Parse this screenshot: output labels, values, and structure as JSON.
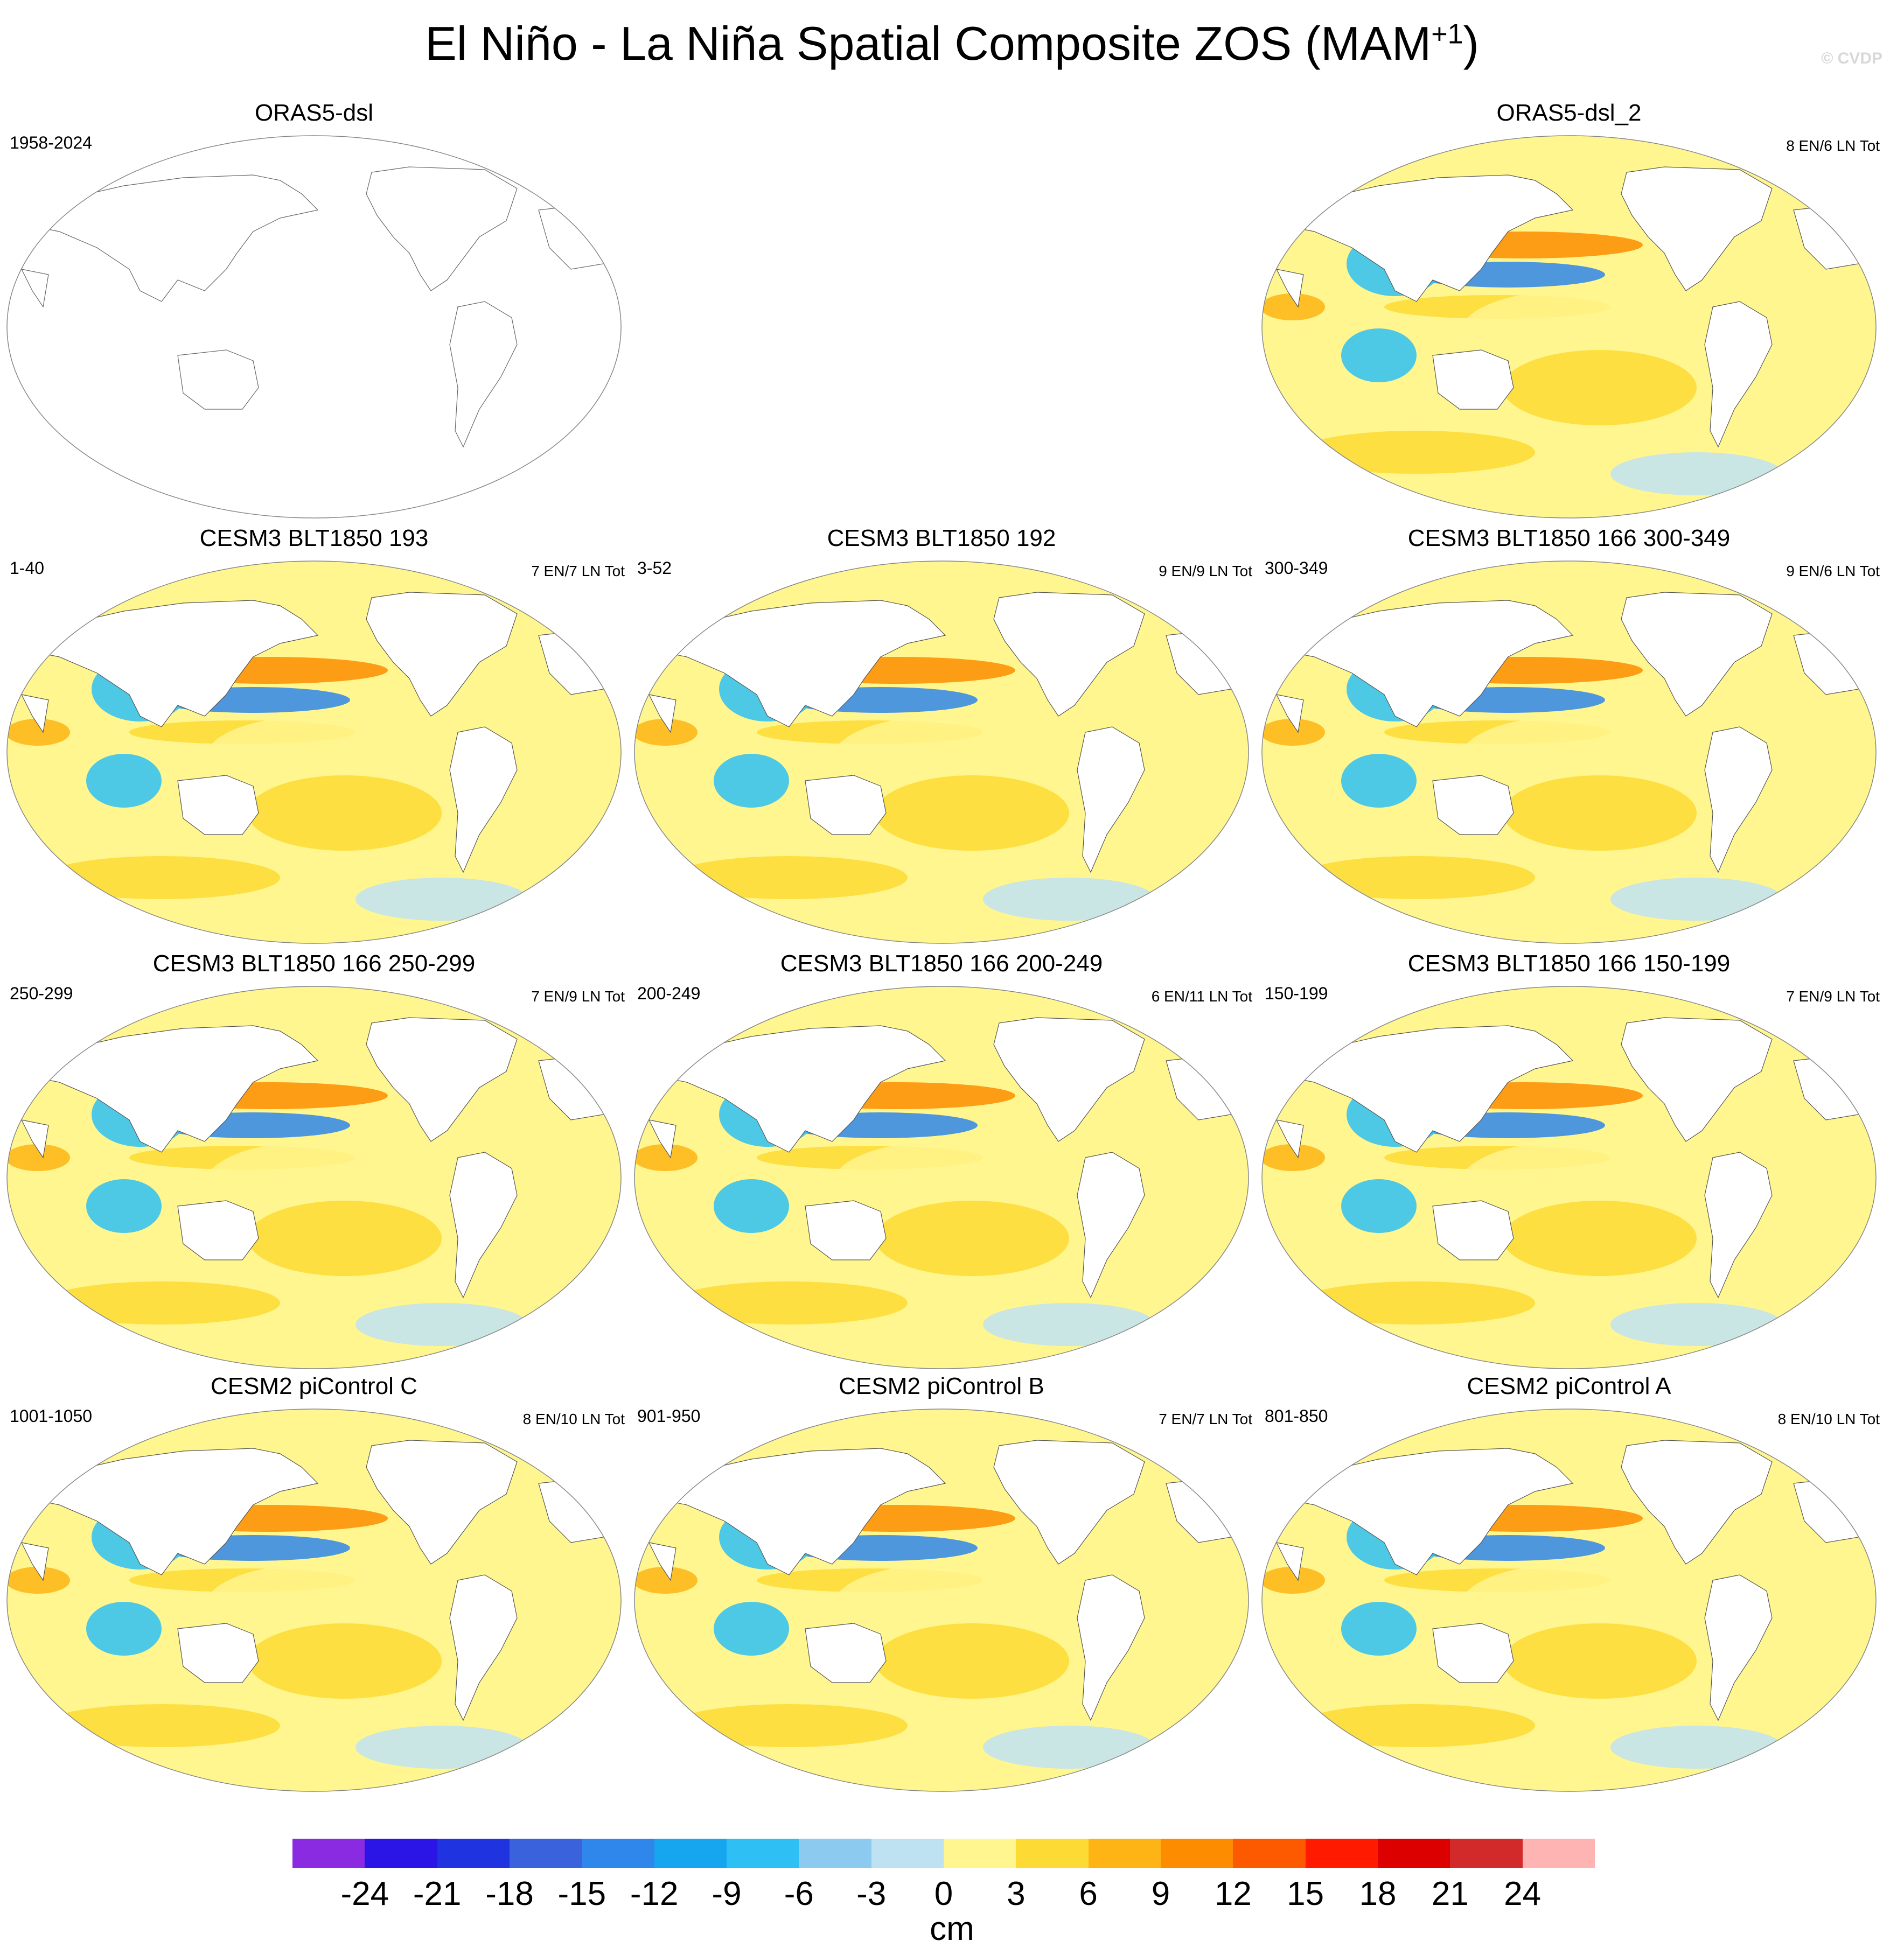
{
  "figure": {
    "title_main": "El Niño - La Niña Spatial Composite ZOS (MAM",
    "title_sup": "+1",
    "title_end": ")",
    "copyright": "© CVDP"
  },
  "panels": [
    {
      "title": "ORAS5-dsl",
      "left": "1958-2024",
      "right": "",
      "empty": true
    },
    {
      "title": "ORAS5-dsl_2",
      "left": "",
      "right": "8 EN/6 LN Tot",
      "empty": false
    },
    {
      "title": "CESM3 BLT1850 193",
      "left": "1-40",
      "right": "7 EN/7 LN Tot",
      "empty": false
    },
    {
      "title": "CESM3 BLT1850 192",
      "left": "3-52",
      "right": "9 EN/9 LN Tot",
      "empty": false
    },
    {
      "title": "CESM3 BLT1850 166 300-349",
      "left": "300-349",
      "right": "9 EN/6 LN Tot",
      "empty": false
    },
    {
      "title": "CESM3 BLT1850 166 250-299",
      "left": "250-299",
      "right": "7 EN/9 LN Tot",
      "empty": false
    },
    {
      "title": "CESM3 BLT1850 166 200-249",
      "left": "200-249",
      "right": "6 EN/11 LN Tot",
      "empty": false
    },
    {
      "title": "CESM3 BLT1850 166 150-199",
      "left": "150-199",
      "right": "7 EN/9 LN Tot",
      "empty": false
    },
    {
      "title": "CESM2 piControl C",
      "left": "1001-1050",
      "right": "8 EN/10 LN Tot",
      "empty": false
    },
    {
      "title": "CESM2 piControl B",
      "left": "901-950",
      "right": "7 EN/7 LN Tot",
      "empty": false
    },
    {
      "title": "CESM2 piControl A",
      "left": "801-850",
      "right": "8 EN/10 LN Tot",
      "empty": false
    }
  ],
  "colorbar": {
    "colors": [
      "#8a2be2",
      "#2a14e6",
      "#1f34e0",
      "#3a62dc",
      "#2f86eb",
      "#16a6f0",
      "#2ec0f5",
      "#8ccbef",
      "#bfe2f3",
      "#fff68f",
      "#fddb34",
      "#fdb414",
      "#fd8c00",
      "#fd5a00",
      "#ff1a00",
      "#dc0000",
      "#d22a2a",
      "#ffb4b4"
    ],
    "ticks": [
      "-24",
      "-21",
      "-18",
      "-15",
      "-12",
      "-9",
      "-6",
      "-3",
      "0",
      "3",
      "6",
      "9",
      "12",
      "15",
      "18",
      "21",
      "24"
    ],
    "units": "cm"
  }
}
